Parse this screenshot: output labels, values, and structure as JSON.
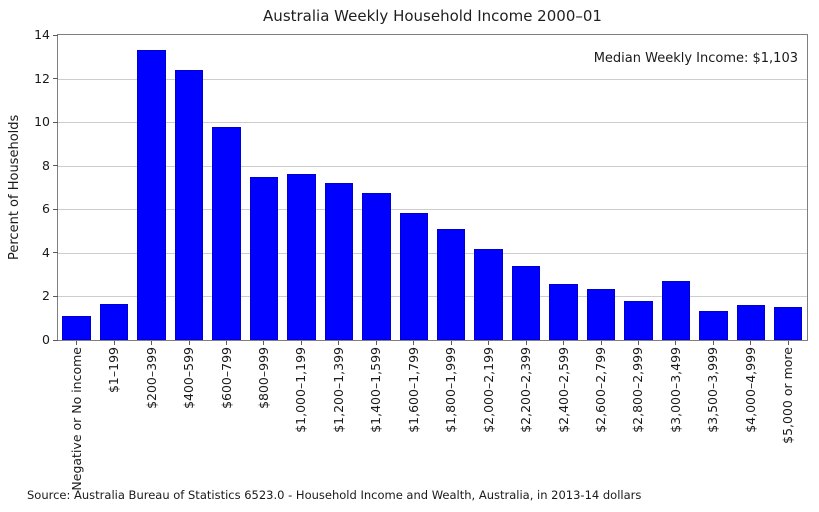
{
  "figure": {
    "source": "Source: Australia Bureau of Statistics 6523.0 - Household Income and Wealth, Australia, in 2013-14 dollars"
  },
  "chart_data": {
    "type": "bar",
    "title": "Australia Weekly Household Income 2000–01",
    "annotation": "Median Weekly Income: $1,103",
    "xlabel": "",
    "ylabel": "Percent of Households",
    "ylim": [
      0,
      14
    ],
    "yticks": [
      0,
      2,
      4,
      6,
      8,
      10,
      12,
      14
    ],
    "grid": "horizontal",
    "legend": "none",
    "bar_color": "#0000ff",
    "bar_edge_color": "#0000d0",
    "categories": [
      "Negative or No income",
      "$1–199",
      "$200–399",
      "$400–599",
      "$600–799",
      "$800–999",
      "$1,000–1,199",
      "$1,200–1,399",
      "$1,400–1,599",
      "$1,600–1,799",
      "$1,800–1,999",
      "$2,000–2,199",
      "$2,200–2,399",
      "$2,400–2,599",
      "$2,600–2,799",
      "$2,800–2,999",
      "$3,000–3,499",
      "$3,500–3,999",
      "$4,000–4,999",
      "$5,000 or more"
    ],
    "values": [
      1.1,
      1.65,
      13.3,
      12.4,
      9.8,
      7.5,
      7.6,
      7.2,
      6.75,
      5.85,
      5.1,
      4.2,
      3.4,
      2.55,
      2.35,
      1.8,
      2.7,
      1.35,
      1.6,
      1.5
    ]
  }
}
